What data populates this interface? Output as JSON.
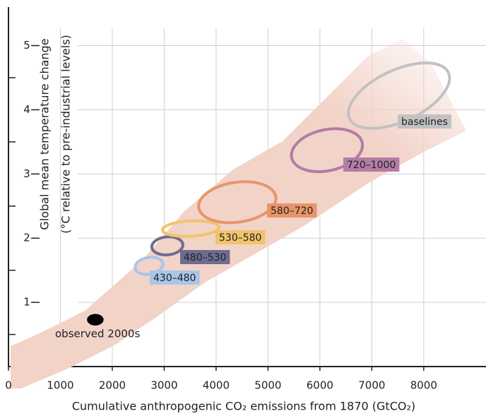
{
  "chart_data": {
    "type": "ellipse",
    "xlabel": "Cumulative anthropogenic CO₂ emissions from 1870 (GtCO₂)",
    "ylabel": [
      "Global mean temperature change",
      "(°C relative to pre-industrial levels)"
    ],
    "xlim": [
      0,
      9200
    ],
    "ylim": [
      0,
      5.6
    ],
    "xticks": [
      0,
      1000,
      2000,
      3000,
      4000,
      5000,
      6000,
      7000,
      8000
    ],
    "yticks": [
      1,
      2,
      3,
      4,
      5
    ],
    "grid": true,
    "series": [
      {
        "name": "430–480",
        "color": "#a9c5ea",
        "x": 2707,
        "y": 1.57,
        "rx": 270,
        "ry": 0.13,
        "angle": -10
      },
      {
        "name": "480–530",
        "color": "#6e6c8e",
        "x": 3061,
        "y": 1.88,
        "rx": 300,
        "ry": 0.14,
        "angle": -5
      },
      {
        "name": "530–580",
        "color": "#f2c36b",
        "x": 3510,
        "y": 2.15,
        "rx": 545,
        "ry": 0.12,
        "angle": -3
      },
      {
        "name": "580–720",
        "color": "#e8956a",
        "x": 4408,
        "y": 2.56,
        "rx": 750,
        "ry": 0.31,
        "angle": -8
      },
      {
        "name": "720–1000",
        "color": "#b47ca4",
        "x": 6136,
        "y": 3.37,
        "rx": 695,
        "ry": 0.32,
        "angle": -12
      },
      {
        "name": "baselines",
        "color": "#c2c2c2",
        "x": 7524,
        "y": 4.22,
        "rx": 1050,
        "ry": 0.4,
        "angle": -25
      }
    ],
    "observed": {
      "name": "observed 2000s",
      "color": "#000000",
      "x": 1673,
      "y": 0.73,
      "rx": 160,
      "ry": 0.09
    }
  }
}
